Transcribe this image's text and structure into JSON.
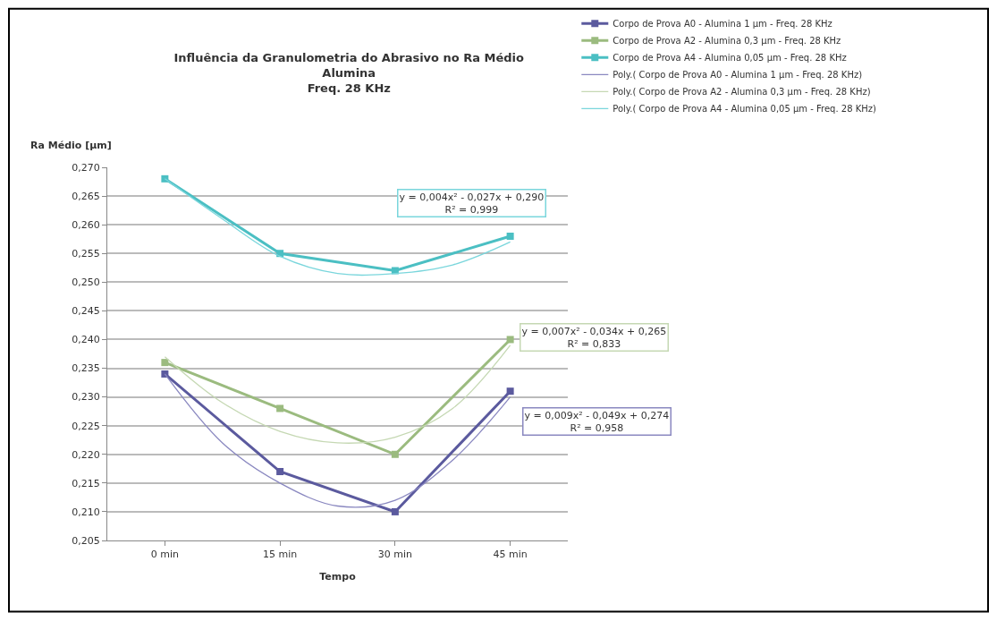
{
  "chart_data": {
    "type": "line",
    "title": "Influência da Granulometria do Abrasivo no Ra Médio\nAlumina\nFreq. 28 KHz",
    "xlabel": "Tempo",
    "ylabel": "Ra Médio [µm]",
    "xlim": [
      -7.5,
      52.5
    ],
    "xticks": [
      {
        "value": 0,
        "label": "0 min"
      },
      {
        "value": 15,
        "label": "15 min"
      },
      {
        "value": 30,
        "label": "30 min"
      },
      {
        "value": 45,
        "label": "45 min"
      }
    ],
    "ylim": [
      0.205,
      0.27
    ],
    "yticks": [
      {
        "value": 0.205,
        "label": "0,205"
      },
      {
        "value": 0.21,
        "label": "0,210"
      },
      {
        "value": 0.215,
        "label": "0,215"
      },
      {
        "value": 0.22,
        "label": "0,220"
      },
      {
        "value": 0.225,
        "label": "0,225"
      },
      {
        "value": 0.23,
        "label": "0,230"
      },
      {
        "value": 0.235,
        "label": "0,235"
      },
      {
        "value": 0.24,
        "label": "0,240"
      },
      {
        "value": 0.245,
        "label": "0,245"
      },
      {
        "value": 0.25,
        "label": "0,250"
      },
      {
        "value": 0.255,
        "label": "0,255"
      },
      {
        "value": 0.26,
        "label": "0,260"
      },
      {
        "value": 0.265,
        "label": "0,265"
      },
      {
        "value": 0.27,
        "label": "0,270"
      }
    ],
    "grid": "y",
    "legend": "top right",
    "marker": "square",
    "line_style": "solid",
    "series": [
      {
        "name": "Corpo de Prova A0 - Alumina 1 µm - Freq. 28 KHz",
        "color": "#5b5a9e",
        "x": [
          0,
          15,
          30,
          45
        ],
        "values": [
          0.234,
          0.217,
          0.21,
          0.231
        ]
      },
      {
        "name": "Corpo de Prova A2 - Alumina 0,3 µm - Freq. 28 KHz",
        "color": "#9bbb7f",
        "x": [
          0,
          15,
          30,
          45
        ],
        "values": [
          0.236,
          0.228,
          0.22,
          0.24
        ]
      },
      {
        "name": "Corpo de Prova A4 - Alumina 0,05 µm - Freq. 28 KHz",
        "color": "#4bbfc3",
        "x": [
          0,
          15,
          30,
          45
        ],
        "values": [
          0.268,
          0.255,
          0.252,
          0.258
        ]
      },
      {
        "name": "Poly.( Corpo de Prova A0 - Alumina 1 µm - Freq. 28 KHz)",
        "color": "#8a88c0",
        "marker": "none",
        "x": [
          0,
          7.5,
          15,
          22.5,
          30,
          37.5,
          45
        ],
        "values": [
          0.234,
          0.222,
          0.215,
          0.211,
          0.212,
          0.219,
          0.23
        ]
      },
      {
        "name": "Poly.( Corpo de Prova A2 - Alumina 0,3 µm - Freq. 28 KHz)",
        "color": "#c5d8b3",
        "marker": "none",
        "x": [
          0,
          7.5,
          15,
          22.5,
          30,
          37.5,
          45
        ],
        "values": [
          0.237,
          0.229,
          0.224,
          0.222,
          0.223,
          0.228,
          0.239
        ]
      },
      {
        "name": "Poly.( Corpo de Prova A4 - Alumina 0,05 µm - Freq. 28 KHz)",
        "color": "#7ad6dc",
        "marker": "none",
        "x": [
          0,
          7.5,
          15,
          22.5,
          30,
          37.5,
          45
        ],
        "values": [
          0.268,
          0.261,
          0.2545,
          0.2515,
          0.2515,
          0.253,
          0.257
        ]
      }
    ],
    "annotations": [
      "y = 0,004x² - 0,027x + 0,290\nR² = 0,999",
      "y = 0,007x² - 0,034x + 0,265\nR² = 0,833",
      "y = 0,009x² - 0,049x + 0,274\nR² = 0,958"
    ]
  }
}
